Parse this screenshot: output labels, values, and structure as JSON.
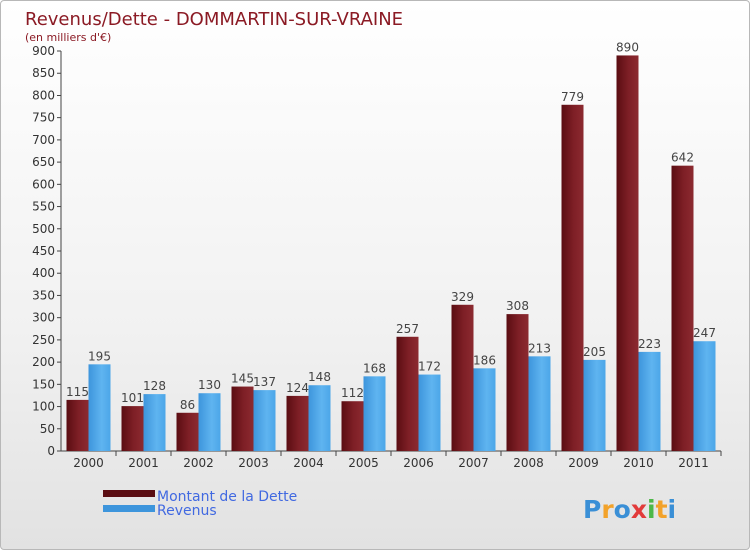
{
  "chart_data": {
    "type": "bar",
    "title": "Revenus/Dette - DOMMARTIN-SUR-VRAINE",
    "subtitle": "(en milliers d'€)",
    "categories": [
      "2000",
      "2001",
      "2002",
      "2003",
      "2004",
      "2005",
      "2006",
      "2007",
      "2008",
      "2009",
      "2010",
      "2011"
    ],
    "series": [
      {
        "name": "Montant de la Dette",
        "values": [
          115,
          101,
          86,
          145,
          124,
          112,
          257,
          329,
          308,
          779,
          890,
          642
        ],
        "color": "#7a1a20"
      },
      {
        "name": "Revenus",
        "values": [
          195,
          128,
          130,
          137,
          148,
          168,
          172,
          186,
          213,
          205,
          223,
          247
        ],
        "color": "#4aa3e6"
      }
    ],
    "ylim": [
      0,
      900
    ],
    "yticks": [
      0,
      50,
      100,
      150,
      200,
      250,
      300,
      350,
      400,
      450,
      500,
      550,
      600,
      650,
      700,
      750,
      800,
      850,
      900
    ],
    "grid": false,
    "legend_position": "bottom-left"
  },
  "logo": {
    "text": "Proxiti",
    "letters": [
      "P",
      "r",
      "o",
      "x",
      "i",
      "t",
      "i"
    ],
    "colors": [
      "#3a8fd6",
      "#f2a22a",
      "#3a8fd6",
      "#e23a3a",
      "#4cb848",
      "#f2a22a",
      "#3a8fd6"
    ]
  }
}
